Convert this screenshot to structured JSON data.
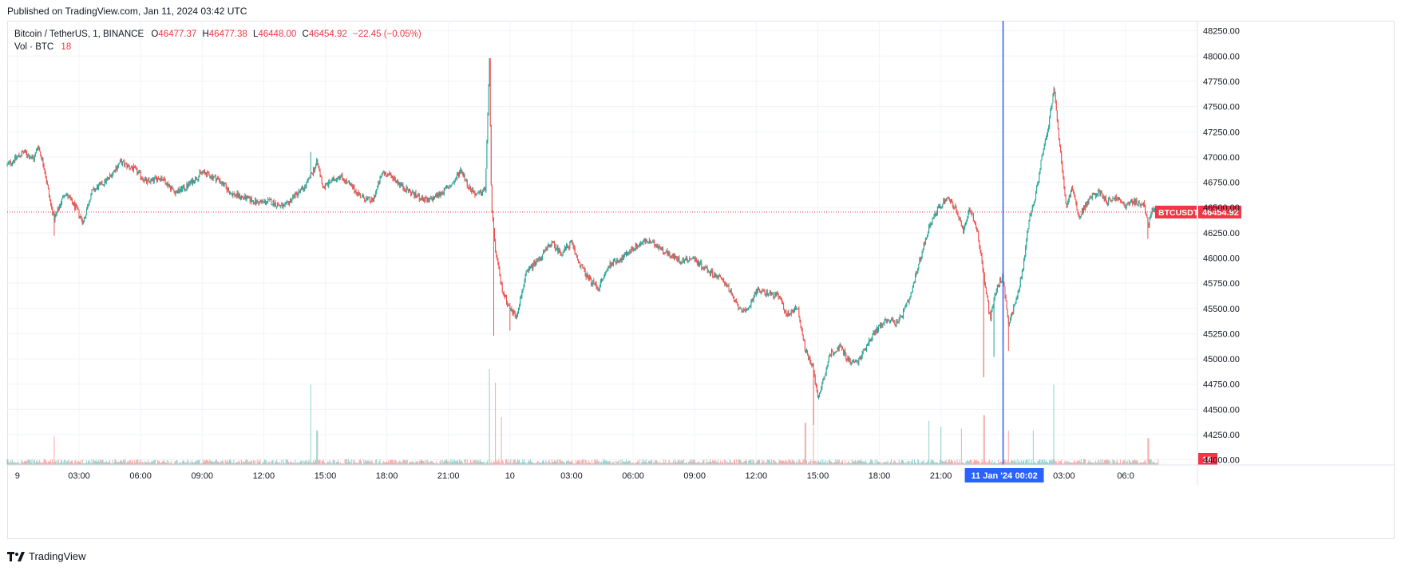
{
  "published": "Published on TradingView.com, Jan 11, 2024 03:42 UTC",
  "legend": {
    "symbol": "Bitcoin / TetherUS, 1, BINANCE",
    "o_label": "O",
    "o_value": "46477.37",
    "h_label": "H",
    "h_value": "46477.38",
    "l_label": "L",
    "l_value": "46448.00",
    "c_label": "C",
    "c_value": "46454.92",
    "change": "−22.45 (−0.05%)",
    "vol_label": "Vol · BTC",
    "vol_value": "18"
  },
  "price_tag": {
    "symbol": "BTCUSDT",
    "value": "46454.92"
  },
  "volume_tag": "18",
  "crosshair_label": {
    "date": "11 Jan '24",
    "time": "00:02"
  },
  "footer": {
    "brand": "TradingView"
  },
  "colors": {
    "up": "#26a69a",
    "down": "#ef5350",
    "crosshair": "#2962ff",
    "price_line": "#f23645"
  },
  "chart_data": {
    "type": "candlestick",
    "symbol": "BTCUSDT",
    "interval": "1",
    "exchange": "BINANCE",
    "y_ticks": [
      "48250.00",
      "48000.00",
      "47750.00",
      "47500.00",
      "47250.00",
      "47000.00",
      "46750.00",
      "46500.00",
      "46250.00",
      "46000.00",
      "45750.00",
      "45500.00",
      "45250.00",
      "45000.00",
      "44750.00",
      "44500.00",
      "44250.00",
      "44000.00"
    ],
    "x_ticks": [
      "9",
      "03:00",
      "06:00",
      "09:00",
      "12:00",
      "15:00",
      "18:00",
      "21:00",
      "10",
      "03:00",
      "06:00",
      "09:00",
      "12:00",
      "15:00",
      "18:00",
      "21:00",
      "11 Jan '24",
      "03:00",
      "06:0"
    ],
    "y_range": [
      43950,
      48350
    ],
    "x_range_hours": [
      -0.5,
      57.5
    ],
    "current_price": 46454.92,
    "crosshair_hour": 48.03,
    "price_path": [
      [
        -0.5,
        46920
      ],
      [
        0.3,
        47050
      ],
      [
        0.8,
        46980
      ],
      [
        1.0,
        47120
      ],
      [
        1.3,
        46900
      ],
      [
        1.6,
        46550
      ],
      [
        1.8,
        46380
      ],
      [
        2.3,
        46650
      ],
      [
        2.9,
        46480
      ],
      [
        3.2,
        46350
      ],
      [
        3.6,
        46650
      ],
      [
        4.4,
        46780
      ],
      [
        5.0,
        46950
      ],
      [
        5.7,
        46880
      ],
      [
        6.3,
        46750
      ],
      [
        7.0,
        46800
      ],
      [
        7.7,
        46650
      ],
      [
        8.2,
        46700
      ],
      [
        9.0,
        46850
      ],
      [
        9.8,
        46780
      ],
      [
        10.4,
        46640
      ],
      [
        11.0,
        46600
      ],
      [
        11.7,
        46550
      ],
      [
        12.3,
        46560
      ],
      [
        13.0,
        46500
      ],
      [
        13.5,
        46620
      ],
      [
        14.0,
        46700
      ],
      [
        14.3,
        46820
      ],
      [
        14.6,
        46950
      ],
      [
        14.9,
        46700
      ],
      [
        15.3,
        46760
      ],
      [
        15.7,
        46820
      ],
      [
        16.3,
        46700
      ],
      [
        16.8,
        46600
      ],
      [
        17.3,
        46560
      ],
      [
        17.8,
        46850
      ],
      [
        18.3,
        46800
      ],
      [
        18.8,
        46700
      ],
      [
        19.4,
        46620
      ],
      [
        20.0,
        46560
      ],
      [
        20.6,
        46640
      ],
      [
        21.0,
        46700
      ],
      [
        21.3,
        46760
      ],
      [
        21.6,
        46880
      ],
      [
        22.0,
        46700
      ],
      [
        22.4,
        46620
      ],
      [
        22.8,
        46680
      ],
      [
        23.0,
        47950
      ],
      [
        23.1,
        46500
      ],
      [
        23.3,
        46060
      ],
      [
        23.6,
        45700
      ],
      [
        24.0,
        45500
      ],
      [
        24.3,
        45420
      ],
      [
        24.8,
        45850
      ],
      [
        25.2,
        45950
      ],
      [
        25.6,
        46030
      ],
      [
        26.0,
        46150
      ],
      [
        26.5,
        46050
      ],
      [
        27.0,
        46150
      ],
      [
        27.3,
        45980
      ],
      [
        27.8,
        45800
      ],
      [
        28.3,
        45700
      ],
      [
        28.9,
        45950
      ],
      [
        29.5,
        46000
      ],
      [
        30.0,
        46100
      ],
      [
        30.6,
        46170
      ],
      [
        31.2,
        46120
      ],
      [
        31.8,
        46030
      ],
      [
        32.3,
        45970
      ],
      [
        32.9,
        46000
      ],
      [
        33.5,
        45900
      ],
      [
        34.0,
        45830
      ],
      [
        34.5,
        45760
      ],
      [
        35.0,
        45550
      ],
      [
        35.5,
        45450
      ],
      [
        36.0,
        45680
      ],
      [
        36.6,
        45650
      ],
      [
        37.1,
        45620
      ],
      [
        37.5,
        45430
      ],
      [
        38.0,
        45520
      ],
      [
        38.4,
        45080
      ],
      [
        38.8,
        44900
      ],
      [
        39.0,
        44600
      ],
      [
        39.2,
        44750
      ],
      [
        39.6,
        45050
      ],
      [
        40.1,
        45120
      ],
      [
        40.6,
        44960
      ],
      [
        41.0,
        44980
      ],
      [
        41.4,
        45150
      ],
      [
        41.9,
        45300
      ],
      [
        42.4,
        45400
      ],
      [
        42.9,
        45350
      ],
      [
        43.5,
        45600
      ],
      [
        44.0,
        46000
      ],
      [
        44.4,
        46300
      ],
      [
        44.8,
        46470
      ],
      [
        45.3,
        46600
      ],
      [
        45.7,
        46500
      ],
      [
        46.1,
        46250
      ],
      [
        46.4,
        46500
      ],
      [
        46.8,
        46250
      ],
      [
        47.1,
        45800
      ],
      [
        47.4,
        45400
      ],
      [
        47.7,
        45700
      ],
      [
        48.0,
        45820
      ],
      [
        48.3,
        45350
      ],
      [
        48.7,
        45600
      ],
      [
        49.0,
        45900
      ],
      [
        49.3,
        46400
      ],
      [
        49.6,
        46600
      ],
      [
        49.9,
        46980
      ],
      [
        50.2,
        47250
      ],
      [
        50.5,
        47680
      ],
      [
        50.8,
        47100
      ],
      [
        51.1,
        46500
      ],
      [
        51.4,
        46700
      ],
      [
        51.7,
        46400
      ],
      [
        52.0,
        46500
      ],
      [
        52.3,
        46600
      ],
      [
        52.7,
        46660
      ],
      [
        53.1,
        46560
      ],
      [
        53.5,
        46600
      ],
      [
        54.0,
        46520
      ],
      [
        54.4,
        46560
      ],
      [
        54.9,
        46520
      ],
      [
        55.1,
        46320
      ],
      [
        55.3,
        46500
      ],
      [
        55.6,
        46455
      ]
    ],
    "wicks": [
      {
        "hour": 1.8,
        "low": 46220
      },
      {
        "hour": 14.3,
        "low": 45440
      },
      {
        "hour": 14.3,
        "high": 47050
      },
      {
        "hour": 23.0,
        "high": 47970
      },
      {
        "hour": 23.2,
        "low": 45230
      },
      {
        "hour": 24.0,
        "low": 45280
      },
      {
        "hour": 38.8,
        "low": 44340
      },
      {
        "hour": 47.1,
        "low": 44820
      },
      {
        "hour": 47.6,
        "low": 45020
      },
      {
        "hour": 48.3,
        "low": 45080
      },
      {
        "hour": 50.5,
        "high": 47700
      },
      {
        "hour": 55.1,
        "low": 46190
      }
    ],
    "volume": {
      "typical": 20,
      "max_scale": 500,
      "spikes": [
        {
          "hour": 1.8,
          "value": 150
        },
        {
          "hour": 14.3,
          "value": 420
        },
        {
          "hour": 14.6,
          "value": 180
        },
        {
          "hour": 23.0,
          "value": 500
        },
        {
          "hour": 23.3,
          "value": 430
        },
        {
          "hour": 23.6,
          "value": 250
        },
        {
          "hour": 38.4,
          "value": 220
        },
        {
          "hour": 38.8,
          "value": 200
        },
        {
          "hour": 44.4,
          "value": 230
        },
        {
          "hour": 45.0,
          "value": 200
        },
        {
          "hour": 46.0,
          "value": 190
        },
        {
          "hour": 47.1,
          "value": 260
        },
        {
          "hour": 48.3,
          "value": 180
        },
        {
          "hour": 49.5,
          "value": 180
        },
        {
          "hour": 50.5,
          "value": 420
        },
        {
          "hour": 55.1,
          "value": 140
        }
      ]
    }
  }
}
